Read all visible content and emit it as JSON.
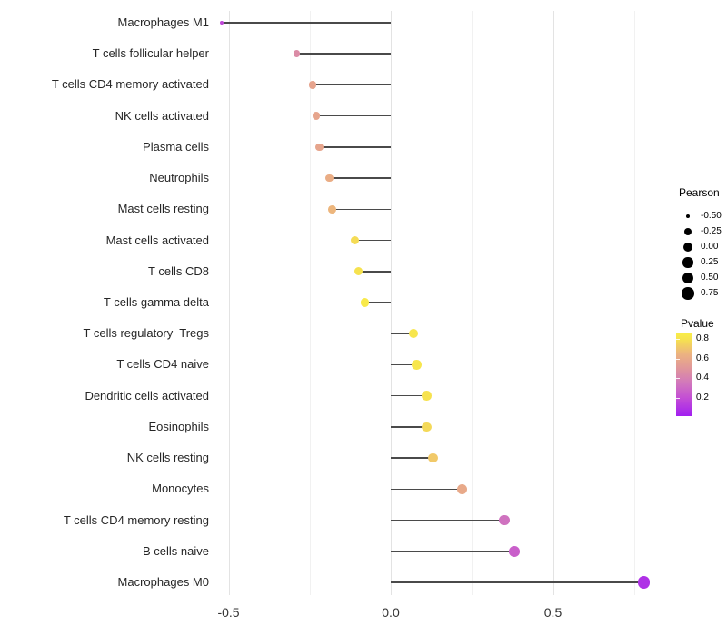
{
  "chart_data": {
    "type": "lollipop",
    "title": "",
    "xlabel": "",
    "ylabel": "",
    "x_axis": {
      "range": [
        -0.55,
        1.0
      ],
      "ticks": [
        {
          "label": "-0.5",
          "value": -0.5
        },
        {
          "label": "0.0",
          "value": 0.0
        },
        {
          "label": "0.5",
          "value": 0.5
        }
      ],
      "major_gridlines": [
        -0.5,
        0.0,
        0.5
      ],
      "minor_gridlines": [
        -0.25,
        0.25,
        0.75
      ]
    },
    "rows": [
      {
        "label": "Macrophages M1",
        "pearson": -0.52,
        "pvalue": 0.17
      },
      {
        "label": "T cells follicular helper",
        "pearson": -0.29,
        "pvalue": 0.45
      },
      {
        "label": "T cells CD4 memory activated",
        "pearson": -0.24,
        "pvalue": 0.57
      },
      {
        "label": "NK cells activated",
        "pearson": -0.23,
        "pvalue": 0.58
      },
      {
        "label": "Plasma cells",
        "pearson": -0.22,
        "pvalue": 0.58
      },
      {
        "label": "Neutrophils",
        "pearson": -0.19,
        "pvalue": 0.62
      },
      {
        "label": "Mast cells resting",
        "pearson": -0.18,
        "pvalue": 0.66
      },
      {
        "label": "Mast cells activated",
        "pearson": -0.11,
        "pvalue": 0.78
      },
      {
        "label": "T cells CD8",
        "pearson": -0.1,
        "pvalue": 0.8
      },
      {
        "label": "T cells gamma delta",
        "pearson": -0.08,
        "pvalue": 0.84
      },
      {
        "label": "T cells regulatory  Tregs",
        "pearson": 0.07,
        "pvalue": 0.82
      },
      {
        "label": "T cells CD4 naive",
        "pearson": 0.08,
        "pvalue": 0.82
      },
      {
        "label": "Dendritic cells activated",
        "pearson": 0.11,
        "pvalue": 0.8
      },
      {
        "label": "Eosinophils",
        "pearson": 0.11,
        "pvalue": 0.77
      },
      {
        "label": "NK cells resting",
        "pearson": 0.13,
        "pvalue": 0.72
      },
      {
        "label": "Monocytes",
        "pearson": 0.22,
        "pvalue": 0.6
      },
      {
        "label": "T cells CD4 memory resting",
        "pearson": 0.35,
        "pvalue": 0.33
      },
      {
        "label": "B cells naive",
        "pearson": 0.38,
        "pvalue": 0.26
      },
      {
        "label": "Macrophages M0",
        "pearson": 0.78,
        "pvalue": 0.08
      }
    ],
    "legend_position": "right",
    "grid": "vertical-only"
  },
  "legends": {
    "size": {
      "title": "Pearson",
      "entries": [
        {
          "label": "-0.50",
          "value": -0.5
        },
        {
          "label": "-0.25",
          "value": -0.25
        },
        {
          "label": "0.00",
          "value": 0.0
        },
        {
          "label": "0.25",
          "value": 0.25
        },
        {
          "label": "0.50",
          "value": 0.5
        },
        {
          "label": "0.75",
          "value": 0.75
        }
      ]
    },
    "color": {
      "title": "Pvalue",
      "domain": [
        0.01,
        0.87
      ],
      "ticks": [
        {
          "label": "0.8",
          "value": 0.8
        },
        {
          "label": "0.6",
          "value": 0.6
        },
        {
          "label": "0.4",
          "value": 0.4
        },
        {
          "label": "0.2",
          "value": 0.2
        }
      ],
      "stops": [
        {
          "p": 0.01,
          "color": "#A21FF0"
        },
        {
          "p": 0.2,
          "color": "#C44FD4"
        },
        {
          "p": 0.35,
          "color": "#D177BC"
        },
        {
          "p": 0.5,
          "color": "#E0969B"
        },
        {
          "p": 0.65,
          "color": "#ECB380"
        },
        {
          "p": 0.8,
          "color": "#F6E24F"
        },
        {
          "p": 0.87,
          "color": "#F9EF47"
        }
      ]
    }
  },
  "colors": {
    "background": "#ffffff",
    "stem": "#4a4a4a",
    "grid_major": "#e3e3e3",
    "grid_minor": "#f1f1f1",
    "axis_text": "#333333",
    "label_text": "#262626",
    "legend_dot": "#000000"
  }
}
